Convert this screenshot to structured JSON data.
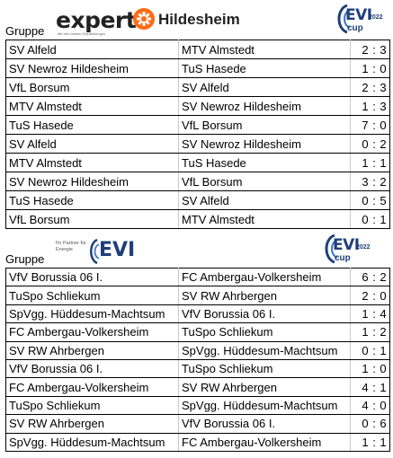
{
  "groups": [
    {
      "label": "Gruppe",
      "sponsor": {
        "brand": "expert",
        "tagline": "Mit den besten Empfehlungen",
        "city": "Hildesheim",
        "badge_color": "#ff6a13"
      },
      "cup_logo": {
        "word": "EVI",
        "year": "2022",
        "suffix": "cup"
      },
      "matches": [
        {
          "home": "SV Alfeld",
          "away": "MTV Almstedt",
          "hg": "2",
          "ag": "3"
        },
        {
          "home": "SV Newroz Hildesheim",
          "away": "TuS Hasede",
          "hg": "1",
          "ag": "0"
        },
        {
          "home": "VfL Borsum",
          "away": "SV Alfeld",
          "hg": "2",
          "ag": "3"
        },
        {
          "home": "MTV Almstedt",
          "away": "SV Newroz Hildesheim",
          "hg": "1",
          "ag": "3"
        },
        {
          "home": "TuS Hasede",
          "away": "VfL Borsum",
          "hg": "7",
          "ag": "0"
        },
        {
          "home": "SV Alfeld",
          "away": "SV Newroz Hildesheim",
          "hg": "0",
          "ag": "2"
        },
        {
          "home": "MTV Almstedt",
          "away": "TuS Hasede",
          "hg": "1",
          "ag": "1"
        },
        {
          "home": "SV Newroz Hildesheim",
          "away": "VfL Borsum",
          "hg": "3",
          "ag": "2"
        },
        {
          "home": "TuS Hasede",
          "away": "SV Alfeld",
          "hg": "0",
          "ag": "5"
        },
        {
          "home": "VfL Borsum",
          "away": "MTV Almstedt",
          "hg": "0",
          "ag": "1"
        }
      ]
    },
    {
      "label": "Gruppe",
      "sponsor": {
        "brand": "EVI",
        "tagline": "Ihr Partner für Energie",
        "brand_color": "#1f3f7a"
      },
      "cup_logo": {
        "word": "EVI",
        "year": "2022",
        "suffix": "cup"
      },
      "matches": [
        {
          "home": "VfV Borussia 06 I.",
          "away": "FC Ambergau-Volkersheim",
          "hg": "6",
          "ag": "2"
        },
        {
          "home": "TuSpo Schliekum",
          "away": "SV RW Ahrbergen",
          "hg": "2",
          "ag": "0"
        },
        {
          "home": "SpVgg. Hüddesum-Machtsum",
          "away": "VfV Borussia 06 I.",
          "hg": "1",
          "ag": "4"
        },
        {
          "home": "FC Ambergau-Volkersheim",
          "away": "TuSpo Schliekum",
          "hg": "1",
          "ag": "2"
        },
        {
          "home": "SV RW Ahrbergen",
          "away": "SpVgg. Hüddesum-Machtsum",
          "hg": "0",
          "ag": "1"
        },
        {
          "home": "VfV Borussia 06 I.",
          "away": "TuSpo Schliekum",
          "hg": "1",
          "ag": "0"
        },
        {
          "home": "FC Ambergau-Volkersheim",
          "away": "SV RW Ahrbergen",
          "hg": "4",
          "ag": "1"
        },
        {
          "home": "TuSpo Schliekum",
          "away": "SpVgg. Hüddesum-Machtsum",
          "hg": "4",
          "ag": "0"
        },
        {
          "home": "SV RW Ahrbergen",
          "away": "VfV Borussia 06 I.",
          "hg": "0",
          "ag": "6"
        },
        {
          "home": "SpVgg. Hüddesum-Machtsum",
          "away": "FC Ambergau-Volkersheim",
          "hg": "1",
          "ag": "1"
        }
      ]
    }
  ]
}
